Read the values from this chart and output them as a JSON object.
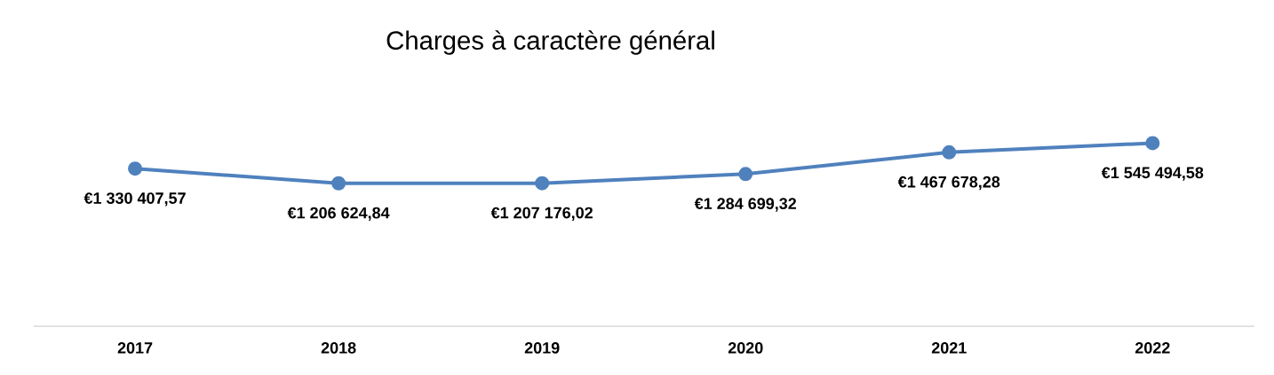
{
  "chart_data": {
    "type": "line",
    "title": "Charges à caractère général",
    "categories": [
      "2017",
      "2018",
      "2019",
      "2020",
      "2021",
      "2022"
    ],
    "values": [
      1330407.57,
      1206624.84,
      1207176.02,
      1284699.32,
      1467678.28,
      1545494.58
    ],
    "value_labels": [
      "€1 330 407,57",
      "€1 206 624,84",
      "€1 207 176,02",
      "€1 284 699,32",
      "€1 467 678,28",
      "€1 545 494,58"
    ],
    "color": "#4f81bd",
    "marker": "circle",
    "line_style": "solid",
    "grid": false,
    "tick_labels": "x"
  }
}
